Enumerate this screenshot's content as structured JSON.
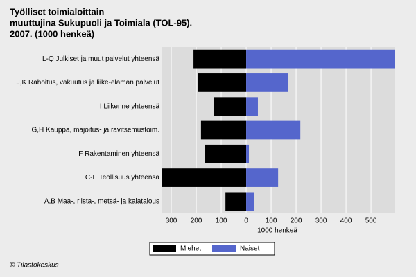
{
  "chart_data": {
    "type": "bar",
    "orientation": "horizontal",
    "title": [
      "Työlliset toimialoittain",
      "muuttujina Sukupuoli ja Toimiala (TOL-95).",
      "2007. (1000 henkeä)"
    ],
    "categories": [
      "L-Q Julkiset ja muut palvelut yhteensä",
      "J,K Rahoitus, vakuutus ja liike-elämän palvelut",
      "I Liikenne yhteensä",
      "G,H Kauppa, majoitus- ja ravitsemustoim.",
      "F Rakentaminen yhteensä",
      "C-E Teollisuus yhteensä",
      "A,B Maa-, riista-, metsä- ja kalatalous"
    ],
    "series": [
      {
        "name": "Miehet",
        "color": "#000000",
        "values": [
          -211,
          -192,
          -128,
          -181,
          -164,
          -339,
          -83
        ]
      },
      {
        "name": "Naiset",
        "color": "#5566cc",
        "values": [
          597,
          169,
          47,
          217,
          11,
          128,
          31
        ]
      }
    ],
    "xlabel": "1000 henkeä",
    "xlim": [
      -339,
      597
    ],
    "xticks": [
      {
        "value": -300,
        "label": "300"
      },
      {
        "value": -200,
        "label": "200"
      },
      {
        "value": -100,
        "label": "100"
      },
      0,
      100,
      200,
      300,
      400,
      500
    ],
    "grid": true,
    "legend": "bottom",
    "source": "© Tilastokeskus"
  }
}
